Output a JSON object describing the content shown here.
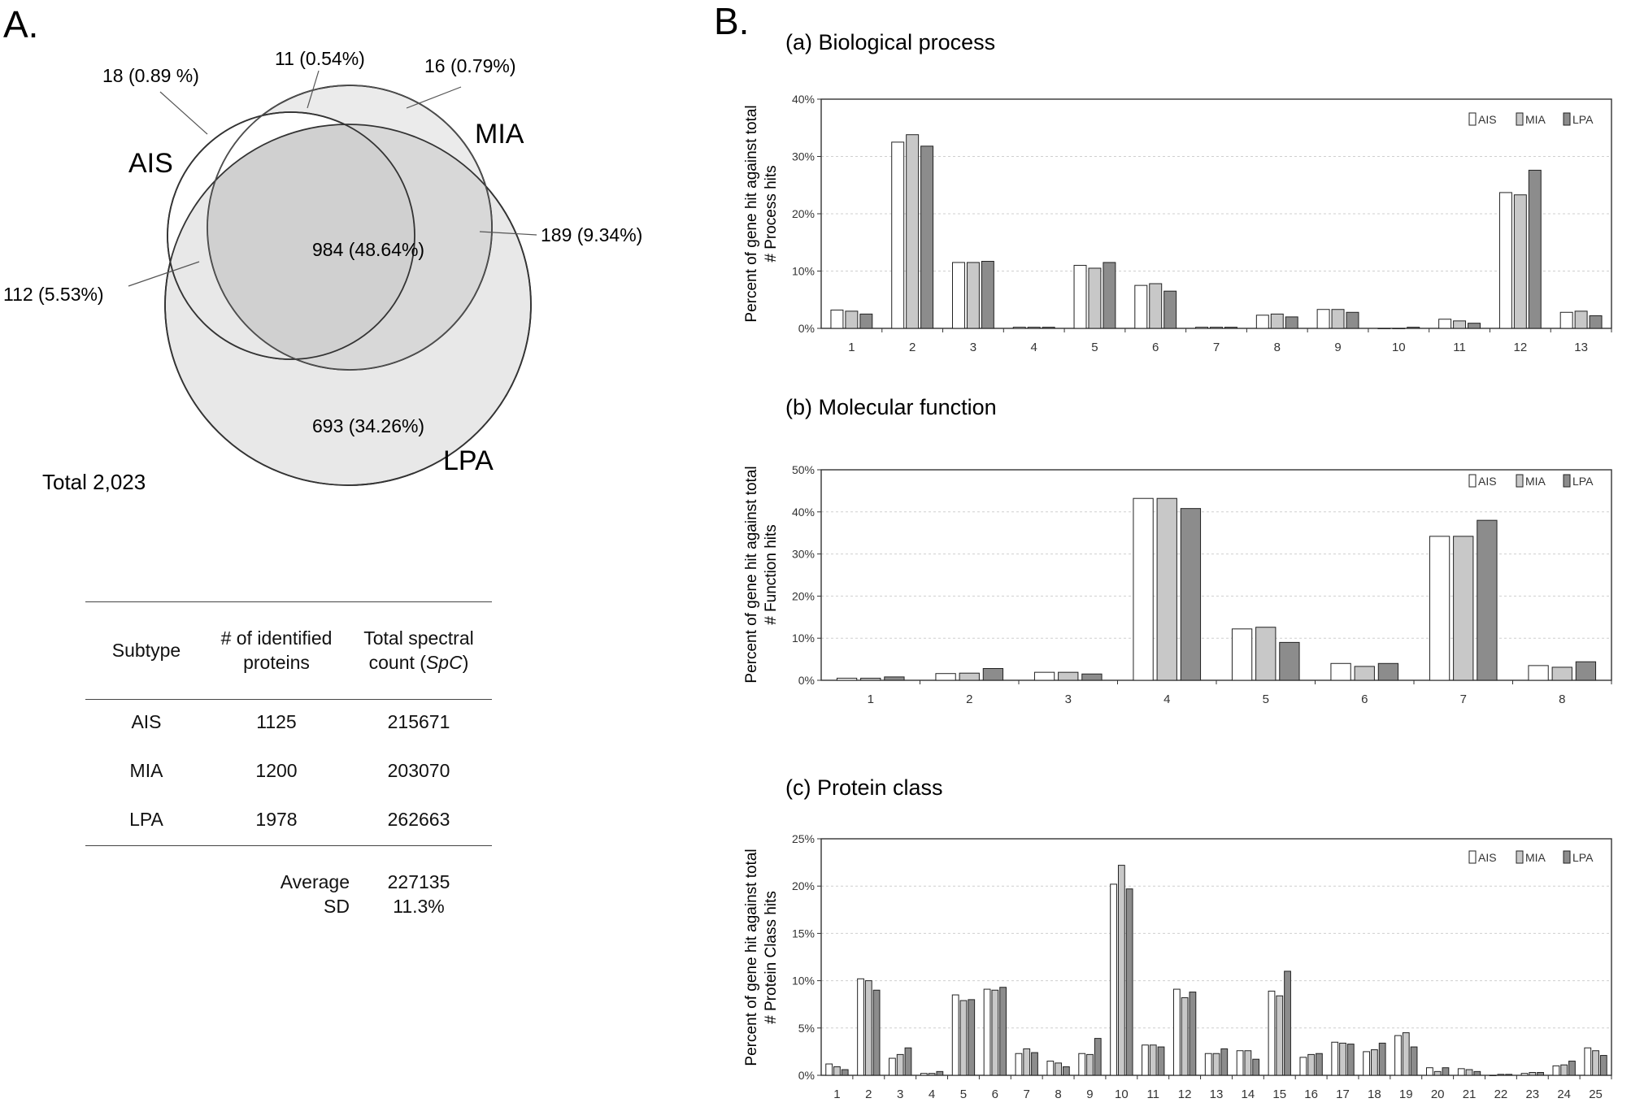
{
  "panel_a": {
    "label": "A.",
    "venn": {
      "sets": [
        {
          "name": "AIS",
          "color": "#ffffff"
        },
        {
          "name": "MIA",
          "color": "#ebebeb"
        },
        {
          "name": "LPA",
          "color": "#e8e8e8"
        }
      ],
      "regions": [
        {
          "key": "ais_only",
          "text": "18 (0.89 %)",
          "count": 18,
          "percent": 0.89
        },
        {
          "key": "ais_mia",
          "text": "11 (0.54%)",
          "count": 11,
          "percent": 0.54
        },
        {
          "key": "mia_only",
          "text": "16 (0.79%)",
          "count": 16,
          "percent": 0.79
        },
        {
          "key": "mia_lpa",
          "text": "189 (9.34%)",
          "count": 189,
          "percent": 9.34
        },
        {
          "key": "all",
          "text": "984 (48.64%)",
          "count": 984,
          "percent": 48.64
        },
        {
          "key": "ais_lpa",
          "text": "112 (5.53%)",
          "count": 112,
          "percent": 5.53
        },
        {
          "key": "lpa_only",
          "text": "693 (34.26%)",
          "count": 693,
          "percent": 34.26
        }
      ],
      "total_label": "Total 2,023"
    },
    "table": {
      "headers": [
        "Subtype",
        "# of identified proteins",
        "Total spectral count (SpC)"
      ],
      "header_lines": [
        [
          "Subtype"
        ],
        [
          "# of identified",
          "proteins"
        ],
        [
          "Total spectral",
          "count ("
        ]
      ],
      "header_italic": "SpC",
      "header_tail": ")",
      "rows": [
        {
          "subtype": "AIS",
          "proteins": "1125",
          "spc": "215671"
        },
        {
          "subtype": "MIA",
          "proteins": "1200",
          "spc": "203070"
        },
        {
          "subtype": "LPA",
          "proteins": "1978",
          "spc": "262663"
        }
      ],
      "footer": [
        {
          "label": "Average",
          "value": "227135"
        },
        {
          "label": "SD",
          "value": "11.3%"
        }
      ]
    }
  },
  "panel_b": {
    "label": "B.",
    "legend": [
      "AIS",
      "MIA",
      "LPA"
    ],
    "series_colors": {
      "AIS": "#ffffff",
      "MIA": "#c8c8c8",
      "LPA": "#8c8c8c"
    }
  },
  "chart_data": [
    {
      "type": "bar",
      "title": "(a) Biological process",
      "ylabel": "Percent of gene hit against total # Process hits",
      "ylabel_lines": [
        "Percent of gene hit against total",
        "# Process hits"
      ],
      "xlabel": "",
      "categories": [
        "1",
        "2",
        "3",
        "4",
        "5",
        "6",
        "7",
        "8",
        "9",
        "10",
        "11",
        "12",
        "13"
      ],
      "ylim": [
        0,
        40
      ],
      "yticks": [
        0,
        10,
        20,
        30,
        40
      ],
      "ytick_labels": [
        "0%",
        "10%",
        "20%",
        "30%",
        "40%"
      ],
      "grid": true,
      "legend_position": "top-right",
      "series": [
        {
          "name": "AIS",
          "values": [
            3.2,
            32.5,
            11.5,
            0.2,
            11,
            7.5,
            0.2,
            2.3,
            3.3,
            0.0,
            1.6,
            23.7,
            2.8
          ]
        },
        {
          "name": "MIA",
          "values": [
            3.0,
            33.8,
            11.5,
            0.2,
            10.5,
            7.8,
            0.2,
            2.5,
            3.3,
            0.0,
            1.3,
            23.3,
            3.0
          ]
        },
        {
          "name": "LPA",
          "values": [
            2.5,
            31.8,
            11.7,
            0.2,
            11.5,
            6.5,
            0.2,
            2.0,
            2.8,
            0.2,
            0.9,
            27.6,
            2.2
          ]
        }
      ]
    },
    {
      "type": "bar",
      "title": "(b) Molecular function",
      "ylabel": "Percent of gene hit against total # Function hits",
      "ylabel_lines": [
        "Percent of gene hit against total",
        "# Function hits"
      ],
      "xlabel": "",
      "categories": [
        "1",
        "2",
        "3",
        "4",
        "5",
        "6",
        "7",
        "8"
      ],
      "ylim": [
        0,
        50
      ],
      "yticks": [
        0,
        10,
        20,
        30,
        40,
        50
      ],
      "ytick_labels": [
        "0%",
        "10%",
        "20%",
        "30%",
        "40%",
        "50%"
      ],
      "grid": true,
      "legend_position": "top-right",
      "series": [
        {
          "name": "AIS",
          "values": [
            0.5,
            1.6,
            1.9,
            43.2,
            12.2,
            4.0,
            34.2,
            3.5
          ]
        },
        {
          "name": "MIA",
          "values": [
            0.5,
            1.7,
            1.9,
            43.2,
            12.6,
            3.3,
            34.2,
            3.1
          ]
        },
        {
          "name": "LPA",
          "values": [
            0.8,
            2.8,
            1.5,
            40.8,
            9.0,
            4.0,
            38.0,
            4.4
          ]
        }
      ]
    },
    {
      "type": "bar",
      "title": "(c) Protein class",
      "ylabel": "Percent of gene hit against total # Protein Class hits",
      "ylabel_lines": [
        "Percent of gene hit against total",
        "# Protein Class hits"
      ],
      "xlabel": "",
      "categories": [
        "1",
        "2",
        "3",
        "4",
        "5",
        "6",
        "7",
        "8",
        "9",
        "10",
        "11",
        "12",
        "13",
        "14",
        "15",
        "16",
        "17",
        "18",
        "19",
        "20",
        "21",
        "22",
        "23",
        "24",
        "25"
      ],
      "ylim": [
        0,
        25
      ],
      "yticks": [
        0,
        5,
        10,
        15,
        20,
        25
      ],
      "ytick_labels": [
        "0%",
        "5%",
        "10%",
        "15%",
        "20%",
        "25%"
      ],
      "grid": true,
      "legend_position": "top-right",
      "series": [
        {
          "name": "AIS",
          "values": [
            1.2,
            10.2,
            1.8,
            0.2,
            8.5,
            9.1,
            2.3,
            1.5,
            2.3,
            20.2,
            3.2,
            9.1,
            2.3,
            2.6,
            8.9,
            1.9,
            3.5,
            2.5,
            4.2,
            0.8,
            0.7,
            0.0,
            0.2,
            1.0,
            2.9
          ]
        },
        {
          "name": "MIA",
          "values": [
            0.9,
            10.0,
            2.2,
            0.2,
            7.9,
            9.0,
            2.8,
            1.3,
            2.2,
            22.2,
            3.2,
            8.2,
            2.3,
            2.6,
            8.4,
            2.2,
            3.4,
            2.7,
            4.5,
            0.4,
            0.6,
            0.1,
            0.3,
            1.1,
            2.6
          ]
        },
        {
          "name": "LPA",
          "values": [
            0.6,
            9.0,
            2.9,
            0.4,
            8.0,
            9.3,
            2.4,
            0.9,
            3.9,
            19.7,
            3.0,
            8.8,
            2.8,
            1.7,
            11.0,
            2.3,
            3.3,
            3.4,
            3.0,
            0.8,
            0.4,
            0.1,
            0.3,
            1.5,
            2.1
          ]
        }
      ]
    }
  ]
}
